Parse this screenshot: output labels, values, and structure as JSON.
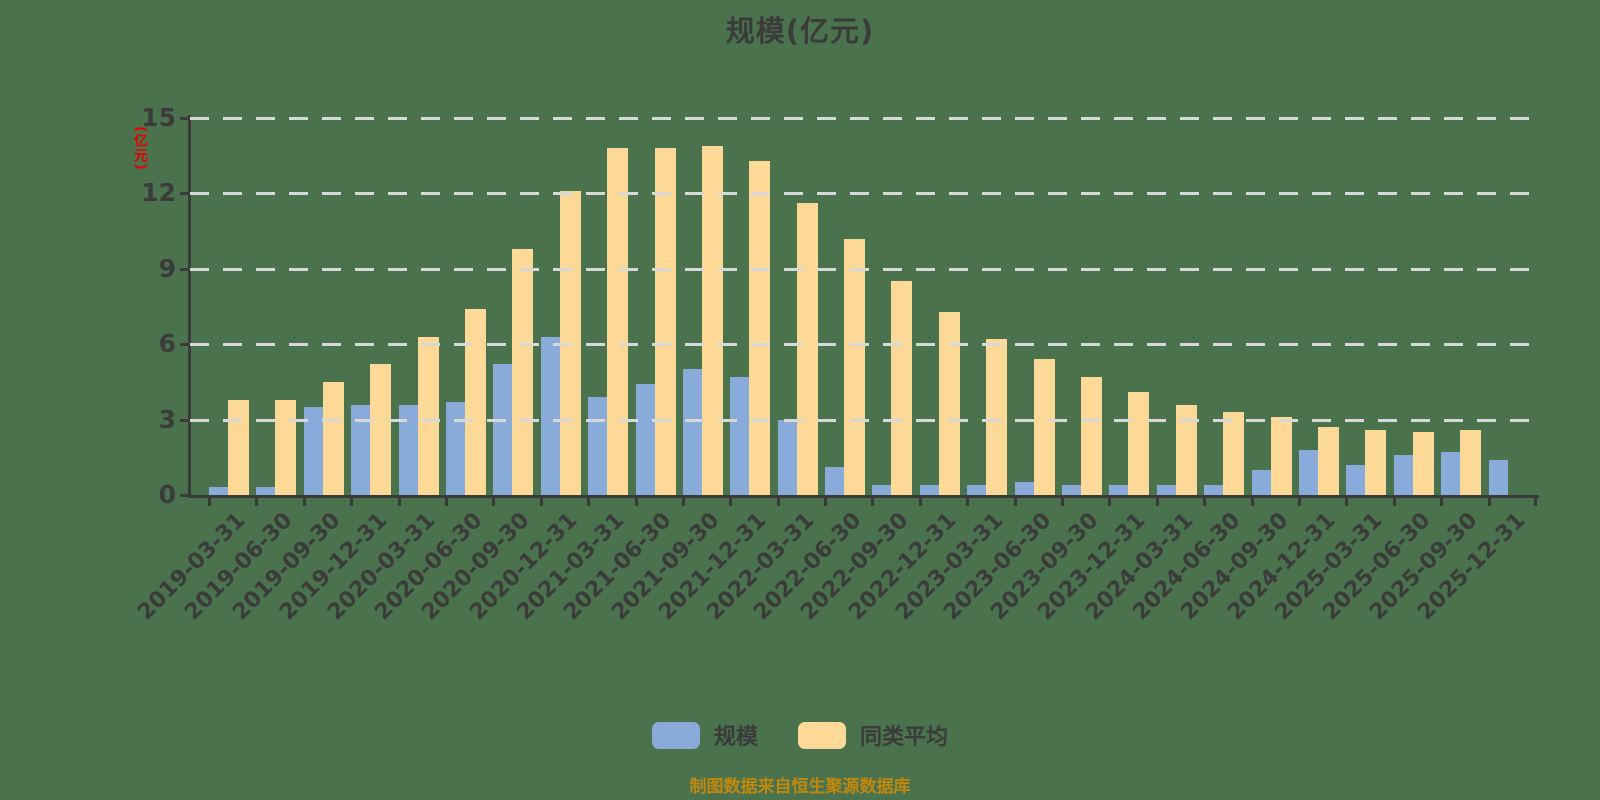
{
  "page": {
    "background_color": "#4a734d",
    "text_color": "#3b3b3b"
  },
  "header": {
    "title": "规模(亿元)"
  },
  "footer": {
    "text": "制图数据来自恒生聚源数据库",
    "color": "#c0880e"
  },
  "legend": {
    "items": [
      {
        "label": "规模",
        "color": "#89abda"
      },
      {
        "label": "同类平均",
        "color": "#fdd997"
      }
    ]
  },
  "axis_style": {
    "axis_color": "#3a3a3a",
    "grid_color": "#d8d8d8",
    "unit_label_color": "#e60000"
  },
  "chart_data": {
    "type": "bar",
    "title": "规模(亿元)",
    "xlabel": "",
    "ylabel": "(亿元)",
    "ylim": [
      0,
      15
    ],
    "yticks": [
      0,
      3,
      6,
      9,
      12,
      15
    ],
    "grid": "horizontal dashed",
    "legend_position": "bottom-center",
    "categories": [
      "2019-03-31",
      "2019-06-30",
      "2019-09-30",
      "2019-12-31",
      "2020-03-31",
      "2020-06-30",
      "2020-09-30",
      "2020-12-31",
      "2021-03-31",
      "2021-06-30",
      "2021-09-30",
      "2021-12-31",
      "2022-03-31",
      "2022-06-30",
      "2022-09-30",
      "2022-12-31",
      "2023-03-31",
      "2023-06-30",
      "2023-09-30",
      "2023-12-31",
      "2024-03-31",
      "2024-06-30",
      "2024-09-30",
      "2024-12-31",
      "2025-03-31",
      "2025-06-30",
      "2025-09-30",
      "2025-12-31"
    ],
    "series": [
      {
        "name": "规模",
        "color": "#89abda",
        "values": [
          0.3,
          0.3,
          3.5,
          3.6,
          3.6,
          3.7,
          5.2,
          6.3,
          3.9,
          4.4,
          5.0,
          4.7,
          3.0,
          1.1,
          0.4,
          0.4,
          0.4,
          0.5,
          0.4,
          0.4,
          0.4,
          0.4,
          1.0,
          1.8,
          1.2,
          1.6,
          1.7,
          1.4
        ]
      },
      {
        "name": "同类平均",
        "color": "#fdd997",
        "values": [
          3.8,
          3.8,
          4.5,
          5.2,
          6.3,
          7.4,
          9.8,
          12.1,
          13.8,
          13.8,
          13.9,
          13.3,
          11.6,
          10.2,
          8.5,
          7.3,
          6.2,
          5.4,
          4.7,
          4.1,
          3.6,
          3.3,
          3.1,
          2.7,
          2.6,
          2.5,
          2.6,
          null
        ]
      }
    ]
  }
}
